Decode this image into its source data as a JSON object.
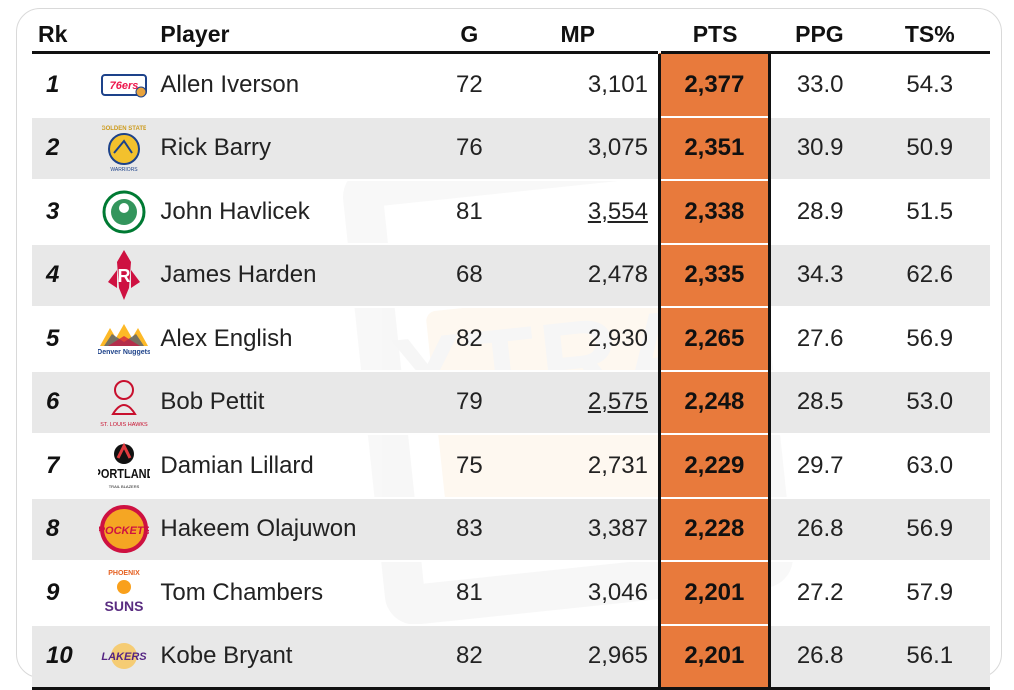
{
  "headers": {
    "rk": "Rk",
    "player": "Player",
    "g": "G",
    "mp": "MP",
    "pts": "PTS",
    "ppg": "PPG",
    "ts": "TS%"
  },
  "colors": {
    "pts_highlight": "#e87a3c",
    "row_alt": "#e8e8e8",
    "rule": "#111111"
  },
  "rows": [
    {
      "rk": "1",
      "player": "Allen Iverson",
      "team_logo": "76ers-logo",
      "g": "72",
      "mp": "3,101",
      "mp_underlined": false,
      "pts": "2,377",
      "ppg": "33.0",
      "ts": "54.3"
    },
    {
      "rk": "2",
      "player": "Rick Barry",
      "team_logo": "golden-state-warriors-logo",
      "logo_text": "GOLDEN STATE",
      "g": "76",
      "mp": "3,075",
      "mp_underlined": false,
      "pts": "2,351",
      "ppg": "30.9",
      "ts": "50.9"
    },
    {
      "rk": "3",
      "player": "John Havlicek",
      "team_logo": "celtics-logo",
      "g": "81",
      "mp": "3,554",
      "mp_underlined": true,
      "pts": "2,338",
      "ppg": "28.9",
      "ts": "51.5"
    },
    {
      "rk": "4",
      "player": "James Harden",
      "team_logo": "rockets-logo",
      "g": "68",
      "mp": "2,478",
      "mp_underlined": false,
      "pts": "2,335",
      "ppg": "34.3",
      "ts": "62.6"
    },
    {
      "rk": "5",
      "player": "Alex English",
      "team_logo": "denver-nuggets-logo",
      "logo_text": "Denver Nuggets",
      "g": "82",
      "mp": "2,930",
      "mp_underlined": false,
      "pts": "2,265",
      "ppg": "27.6",
      "ts": "56.9"
    },
    {
      "rk": "6",
      "player": "Bob Pettit",
      "team_logo": "st-louis-hawks-logo",
      "logo_text": "ST. LOUIS HAWKS",
      "g": "79",
      "mp": "2,575",
      "mp_underlined": true,
      "pts": "2,248",
      "ppg": "28.5",
      "ts": "53.0"
    },
    {
      "rk": "7",
      "player": "Damian Lillard",
      "team_logo": "portland-trail-blazers-logo",
      "logo_text": "PORTLAND",
      "g": "75",
      "mp": "2,731",
      "mp_underlined": false,
      "pts": "2,229",
      "ppg": "29.7",
      "ts": "63.0"
    },
    {
      "rk": "8",
      "player": "Hakeem Olajuwon",
      "team_logo": "houston-rockets-retro-logo",
      "logo_text": "ROCKETS",
      "g": "83",
      "mp": "3,387",
      "mp_underlined": false,
      "pts": "2,228",
      "ppg": "26.8",
      "ts": "56.9"
    },
    {
      "rk": "9",
      "player": "Tom Chambers",
      "team_logo": "phoenix-suns-logo",
      "logo_text": "SUNS",
      "g": "81",
      "mp": "3,046",
      "mp_underlined": false,
      "pts": "2,201",
      "ppg": "27.2",
      "ts": "57.9"
    },
    {
      "rk": "10",
      "player": "Kobe Bryant",
      "team_logo": "lakers-logo",
      "logo_text": "LAKERS",
      "g": "82",
      "mp": "2,965",
      "mp_underlined": false,
      "pts": "2,201",
      "ppg": "26.8",
      "ts": "56.1"
    }
  ]
}
